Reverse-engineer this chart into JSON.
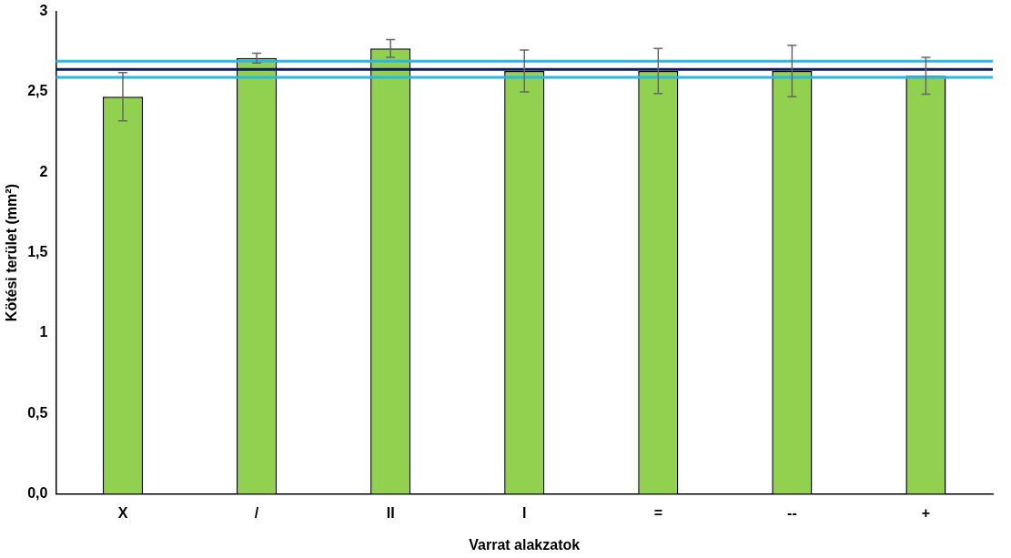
{
  "chart_data": {
    "type": "bar",
    "xlabel": "Varrat alakzatok",
    "ylabel": "Kötési terület (mm²)",
    "categories": [
      "X",
      "/",
      "II",
      "I",
      "=",
      "--",
      "+"
    ],
    "values": [
      2.47,
      2.71,
      2.77,
      2.63,
      2.63,
      2.63,
      2.6
    ],
    "errors": [
      0.15,
      0.03,
      0.055,
      0.13,
      0.14,
      0.16,
      0.115
    ],
    "color": "#92d050",
    "ylim": [
      0,
      3
    ],
    "yticks": [
      {
        "value": 0,
        "label": "0,0"
      },
      {
        "value": 0.5,
        "label": "0,5"
      },
      1,
      {
        "value": 1.5,
        "label": "1,5"
      },
      2,
      {
        "value": 2.5,
        "label": "2,5"
      },
      3
    ],
    "ref_lines": [
      {
        "axis": "y",
        "value": 2.69,
        "color": "#29b6e8"
      },
      {
        "axis": "y",
        "value": 2.64,
        "color": "#0d1a5c"
      },
      {
        "axis": "y",
        "value": 2.59,
        "color": "#29b6e8"
      }
    ],
    "grid": false,
    "legend": false
  }
}
